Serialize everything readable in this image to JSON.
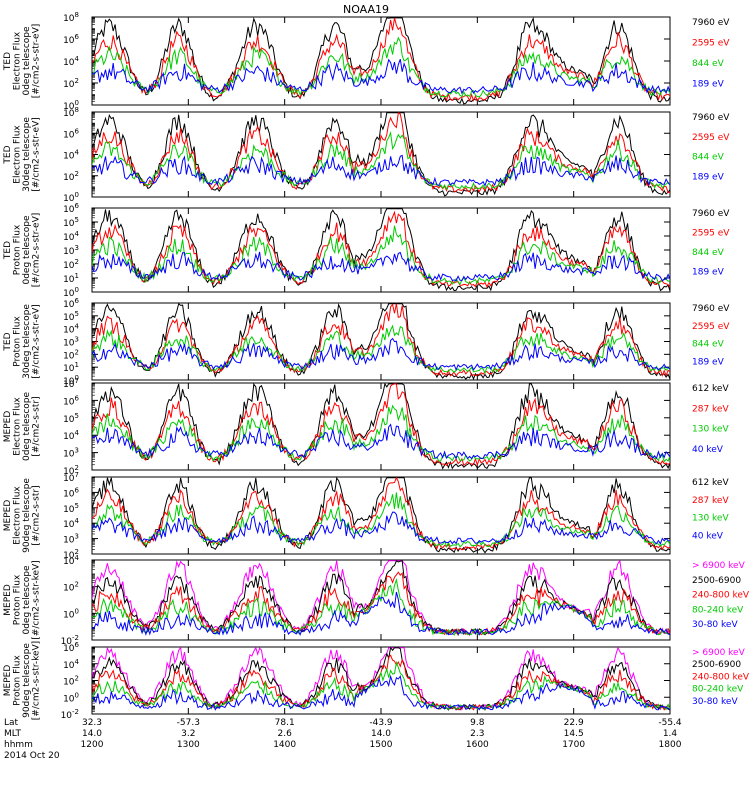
{
  "chart_data": {
    "type": "line",
    "title": "NOAA19",
    "x": {
      "labels": [
        "Lat",
        "MLT",
        "hhmm",
        "2014 Oct 20"
      ],
      "ticks": [
        {
          "lat": "32.3",
          "mlt": "14.0",
          "hhmm": "1200"
        },
        {
          "lat": "-57.3",
          "mlt": "3.2",
          "hhmm": "1300"
        },
        {
          "lat": "78.1",
          "mlt": "2.6",
          "hhmm": "1400"
        },
        {
          "lat": "-43.9",
          "mlt": "14.0",
          "hhmm": "1500"
        },
        {
          "lat": "9.8",
          "mlt": "2.3",
          "hhmm": "1600"
        },
        {
          "lat": "22.9",
          "mlt": "14.5",
          "hhmm": "1700"
        },
        {
          "lat": "-55.4",
          "mlt": "1.4",
          "hhmm": "1800"
        }
      ],
      "range_hhmm": [
        "1200",
        "1800"
      ]
    },
    "panels": [
      {
        "ylabel": [
          "TED",
          "Electron Flux",
          "0deg telescope",
          "[#/cm2-s-str-eV]"
        ],
        "yscale": "log",
        "ytick_exponents": [
          0,
          2,
          4,
          6,
          8
        ],
        "series": [
          {
            "name": "7960 eV",
            "color": "#000000"
          },
          {
            "name": "2595 eV",
            "color": "#ff0000"
          },
          {
            "name": "844 eV",
            "color": "#00cc00"
          },
          {
            "name": "189 eV",
            "color": "#0000ff"
          }
        ]
      },
      {
        "ylabel": [
          "TED",
          "Electron Flux",
          "30deg telescope",
          "[#/cm2-s-str-eV]"
        ],
        "yscale": "log",
        "ytick_exponents": [
          0,
          2,
          4,
          6,
          8
        ],
        "series": [
          {
            "name": "7960 eV",
            "color": "#000000"
          },
          {
            "name": "2595 eV",
            "color": "#ff0000"
          },
          {
            "name": "844 eV",
            "color": "#00cc00"
          },
          {
            "name": "189 eV",
            "color": "#0000ff"
          }
        ]
      },
      {
        "ylabel": [
          "TED",
          "Proton Flux",
          "0deg telescope",
          "[#/cm2-s-str-eV]"
        ],
        "yscale": "log",
        "ytick_exponents": [
          0,
          1,
          2,
          3,
          4,
          5,
          6
        ],
        "series": [
          {
            "name": "7960 eV",
            "color": "#000000"
          },
          {
            "name": "2595 eV",
            "color": "#ff0000"
          },
          {
            "name": "844 eV",
            "color": "#00cc00"
          },
          {
            "name": "189 eV",
            "color": "#0000ff"
          }
        ]
      },
      {
        "ylabel": [
          "TED",
          "Proton Flux",
          "30deg telescope",
          "[#/cm2-s-str-eV]"
        ],
        "yscale": "log",
        "ytick_exponents": [
          0,
          1,
          2,
          3,
          4,
          5,
          6
        ],
        "series": [
          {
            "name": "7960 eV",
            "color": "#000000"
          },
          {
            "name": "2595 eV",
            "color": "#ff0000"
          },
          {
            "name": "844 eV",
            "color": "#00cc00"
          },
          {
            "name": "189 eV",
            "color": "#0000ff"
          }
        ]
      },
      {
        "ylabel": [
          "MEPED",
          "Electron Flux",
          "0deg telescope",
          "[#/cm2-s-str]"
        ],
        "yscale": "log",
        "ytick_exponents": [
          2,
          3,
          4,
          5,
          6,
          7
        ],
        "series": [
          {
            "name": "612 keV",
            "color": "#000000"
          },
          {
            "name": "287 keV",
            "color": "#ff0000"
          },
          {
            "name": "130 keV",
            "color": "#00cc00"
          },
          {
            "name": "40 keV",
            "color": "#0000ff"
          }
        ]
      },
      {
        "ylabel": [
          "MEPED",
          "Electron Flux",
          "90deg telescope",
          "[#/cm2-s-str]"
        ],
        "yscale": "log",
        "ytick_exponents": [
          2,
          3,
          4,
          5,
          6,
          7
        ],
        "series": [
          {
            "name": "612 keV",
            "color": "#000000"
          },
          {
            "name": "287 keV",
            "color": "#ff0000"
          },
          {
            "name": "130 keV",
            "color": "#00cc00"
          },
          {
            "name": "40 keV",
            "color": "#0000ff"
          }
        ]
      },
      {
        "ylabel": [
          "MEPED",
          "Proton Flux",
          "0deg telescope",
          "[#/cm2-s-str-keV]"
        ],
        "yscale": "log",
        "ytick_exponents": [
          -2,
          0,
          2,
          4
        ],
        "series": [
          {
            "name": "> 6900 keV",
            "color": "#ff00ff"
          },
          {
            "name": "2500-6900",
            "color": "#000000"
          },
          {
            "name": "240-800 keV",
            "color": "#ff0000"
          },
          {
            "name": "80-240 keV",
            "color": "#00cc00"
          },
          {
            "name": "30-80 keV",
            "color": "#0000ff"
          }
        ]
      },
      {
        "ylabel": [
          "MEPED",
          "Proton Flux",
          "90deg telescope",
          "[#/cm2-s-str-keV]"
        ],
        "yscale": "log",
        "ytick_exponents": [
          -2,
          0,
          2,
          4,
          6
        ],
        "series": [
          {
            "name": "> 6900 keV",
            "color": "#ff00ff"
          },
          {
            "name": "2500-6900",
            "color": "#000000"
          },
          {
            "name": "240-800 keV",
            "color": "#ff0000"
          },
          {
            "name": "80-240 keV",
            "color": "#00cc00"
          },
          {
            "name": "30-80 keV",
            "color": "#0000ff"
          }
        ]
      }
    ]
  }
}
